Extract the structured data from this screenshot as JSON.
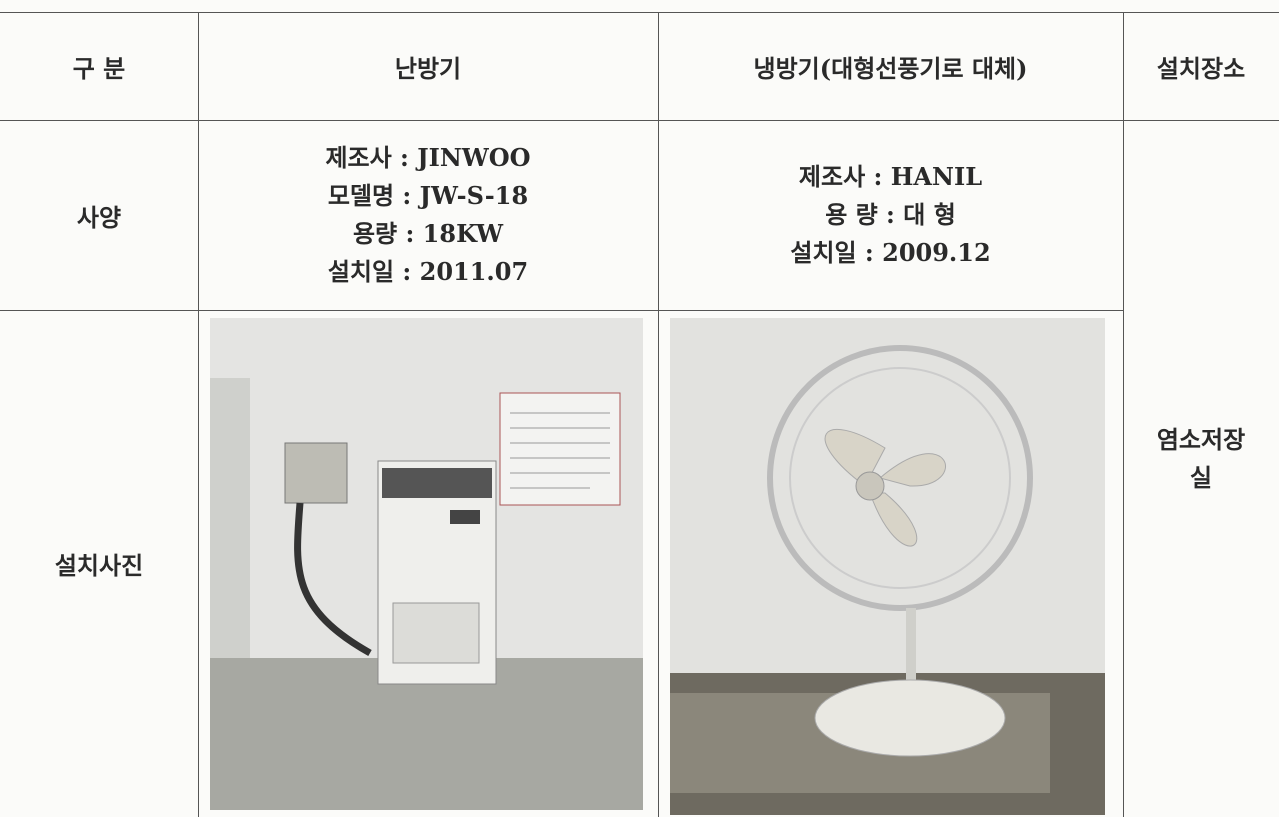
{
  "table": {
    "header": [
      "구 분",
      "난방기",
      "냉방기(대형선풍기로 대체)",
      "설치장소"
    ],
    "spec": {
      "label": "사양",
      "heater": [
        "제조사 : JINWOO",
        "모델명 : JW-S-18",
        "용량 : 18KW",
        "설치일 : 2011.07"
      ],
      "cooler": [
        "제조사 : HANIL",
        "용 량 : 대 형",
        "설치일 : 2009.12"
      ]
    },
    "photo": {
      "label": "설치사진"
    },
    "location": [
      "염소저장",
      "실"
    ]
  }
}
